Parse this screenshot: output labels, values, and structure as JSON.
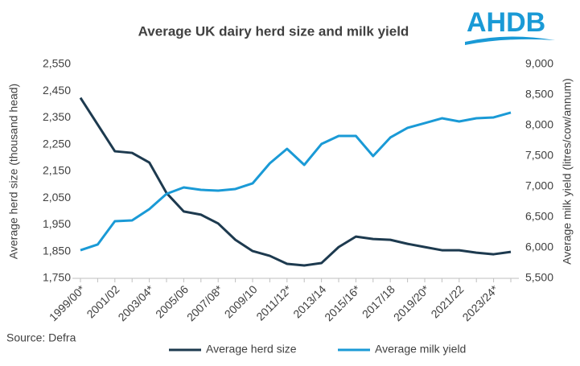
{
  "logo": "AHDB",
  "chart_data": {
    "type": "line",
    "title": "Average UK dairy herd size and milk yield",
    "ylabel": "Average herd size (thousand head)",
    "y2label": "Average milk yield (litres/cow/annum)",
    "source": "Source: Defra",
    "categories": [
      "1999/00*",
      null,
      "2001/02",
      null,
      "2003/04*",
      null,
      "2005/06",
      null,
      "2007/08*",
      null,
      "2009/10",
      null,
      "2011/12*",
      null,
      "2013/14",
      null,
      "2015/16*",
      null,
      "2017/18",
      null,
      "2019/20*",
      null,
      "2021/22",
      null,
      "2023/24*",
      null
    ],
    "series": [
      {
        "name": "Average herd size",
        "color": "#1d3a4f",
        "values": [
          2425,
          2325,
          2225,
          2219,
          2183,
          2069,
          2000,
          1988,
          1955,
          1894,
          1852,
          1834,
          1804,
          1798,
          1807,
          1867,
          1906,
          1897,
          1894,
          1879,
          1867,
          1855,
          1855,
          1846,
          1840,
          1849
        ]
      },
      {
        "name": "Average milk yield",
        "color": "#1a9ad6",
        "axis": "y2",
        "values": [
          5960,
          6053,
          6434,
          6447,
          6632,
          6882,
          6987,
          6947,
          6934,
          6961,
          7053,
          7382,
          7618,
          7355,
          7697,
          7829,
          7829,
          7500,
          7803,
          7961,
          8039,
          8118,
          8066,
          8118,
          8132,
          8211
        ]
      }
    ],
    "ylim": [
      1750,
      2550
    ],
    "yticks": [
      {
        "value": 1750,
        "label": "1,750"
      },
      {
        "value": 1850,
        "label": "1,850"
      },
      {
        "value": 1950,
        "label": "1,950"
      },
      {
        "value": 2050,
        "label": "2,050"
      },
      {
        "value": 2150,
        "label": "2,150"
      },
      {
        "value": 2250,
        "label": "2,250"
      },
      {
        "value": 2350,
        "label": "2,350"
      },
      {
        "value": 2450,
        "label": "2,450"
      },
      {
        "value": 2550,
        "label": "2,550"
      }
    ],
    "y2lim": [
      5500,
      9000
    ],
    "y2ticks": [
      {
        "value": 5500,
        "label": "5,500"
      },
      {
        "value": 6000,
        "label": "6,000"
      },
      {
        "value": 6500,
        "label": "6,500"
      },
      {
        "value": 7000,
        "label": "7,000"
      },
      {
        "value": 7500,
        "label": "7,500"
      },
      {
        "value": 8000,
        "label": "8,000"
      },
      {
        "value": 8500,
        "label": "8,500"
      },
      {
        "value": 9000,
        "label": "9,000"
      }
    ],
    "grid": false,
    "legend": "bottom"
  }
}
